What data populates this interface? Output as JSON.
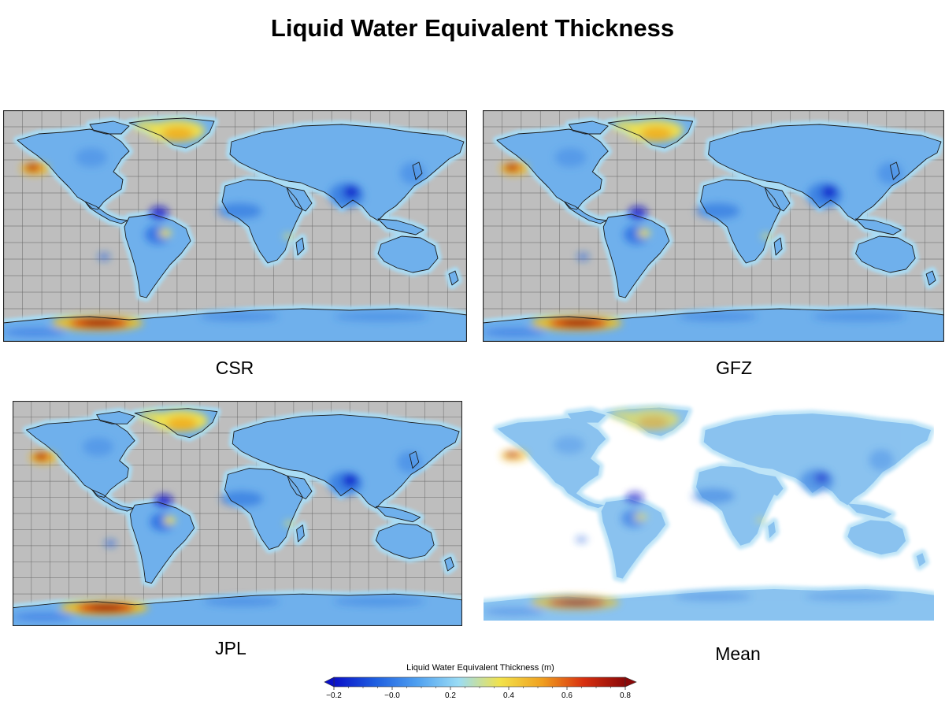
{
  "title": "Liquid Water Equivalent Thickness",
  "panels": [
    {
      "label": "CSR",
      "style": "gridded"
    },
    {
      "label": "GFZ",
      "style": "gridded"
    },
    {
      "label": "JPL",
      "style": "gridded"
    },
    {
      "label": "Mean",
      "style": "plain"
    }
  ],
  "colorbar": {
    "title": "Liquid Water Equivalent Thickness (m)",
    "ticks": [
      "−0.2",
      "−0.0",
      "0.2",
      "0.4",
      "0.6",
      "0.8"
    ],
    "min": -0.2,
    "max": 0.8,
    "colors": [
      "#0a10c8",
      "#1f5fe0",
      "#4fa0f0",
      "#9adcf5",
      "#f2e24a",
      "#f0a020",
      "#d83010",
      "#8a0808"
    ]
  },
  "colors": {
    "ocean": "#bebebe",
    "land_base": "#6fb0ec",
    "coast_halo": "#a9dcf5",
    "high": "#f0c020",
    "peak": "#c81010"
  }
}
